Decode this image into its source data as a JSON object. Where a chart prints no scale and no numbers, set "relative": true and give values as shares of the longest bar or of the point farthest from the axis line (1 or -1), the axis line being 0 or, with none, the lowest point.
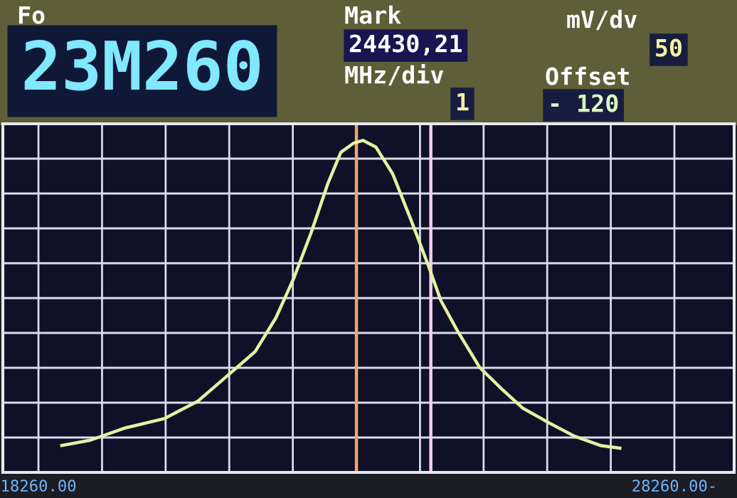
{
  "chart_data": {
    "type": "line",
    "relative": true,
    "x": [
      18627,
      19076,
      19627,
      20240,
      20770,
      21260,
      21668,
      21995,
      22280,
      22546,
      22811,
      23015,
      23219,
      23362,
      23566,
      23831,
      24117,
      24382,
      24587,
      24852,
      25199,
      25546,
      25872,
      26280,
      26689,
      27097,
      27403
    ],
    "series": [
      {
        "color": "#e4f2a0",
        "values": [
          0.081,
          0.097,
          0.134,
          0.162,
          0.215,
          0.296,
          0.364,
          0.466,
          0.587,
          0.721,
          0.87,
          0.964,
          0.992,
          1.0,
          0.98,
          0.899,
          0.761,
          0.628,
          0.518,
          0.425,
          0.316,
          0.251,
          0.194,
          0.15,
          0.109,
          0.081,
          0.073
        ]
      }
    ],
    "xlim": [
      17700,
      29200
    ],
    "xticks": [
      {
        "value": 18260,
        "label": "18260.00"
      },
      {
        "value": 19260,
        "label": null
      },
      {
        "value": 20260,
        "label": null
      },
      {
        "value": 21260,
        "label": null
      },
      {
        "value": 22260,
        "label": null
      },
      {
        "value": 23260,
        "label": null
      },
      {
        "value": 24260,
        "label": null
      },
      {
        "value": 25260,
        "label": null
      },
      {
        "value": 26260,
        "label": null
      },
      {
        "value": 27260,
        "label": null
      },
      {
        "value": 28260,
        "label": "28260.00-"
      }
    ],
    "ref_lines": [
      {
        "axis": "x",
        "value": 23260,
        "label": null,
        "color": "#f0a868"
      },
      {
        "axis": "x",
        "value": 24430.21,
        "label": null,
        "color": "#f4d0f4"
      }
    ],
    "grid": true,
    "marker": "none",
    "line_style": "solid",
    "annotations": [
      "Fo",
      "23M260",
      "Mark",
      "24430,21",
      "mV/dv",
      "50",
      "MHz/div",
      "1",
      "Offset",
      "- 120"
    ]
  }
}
